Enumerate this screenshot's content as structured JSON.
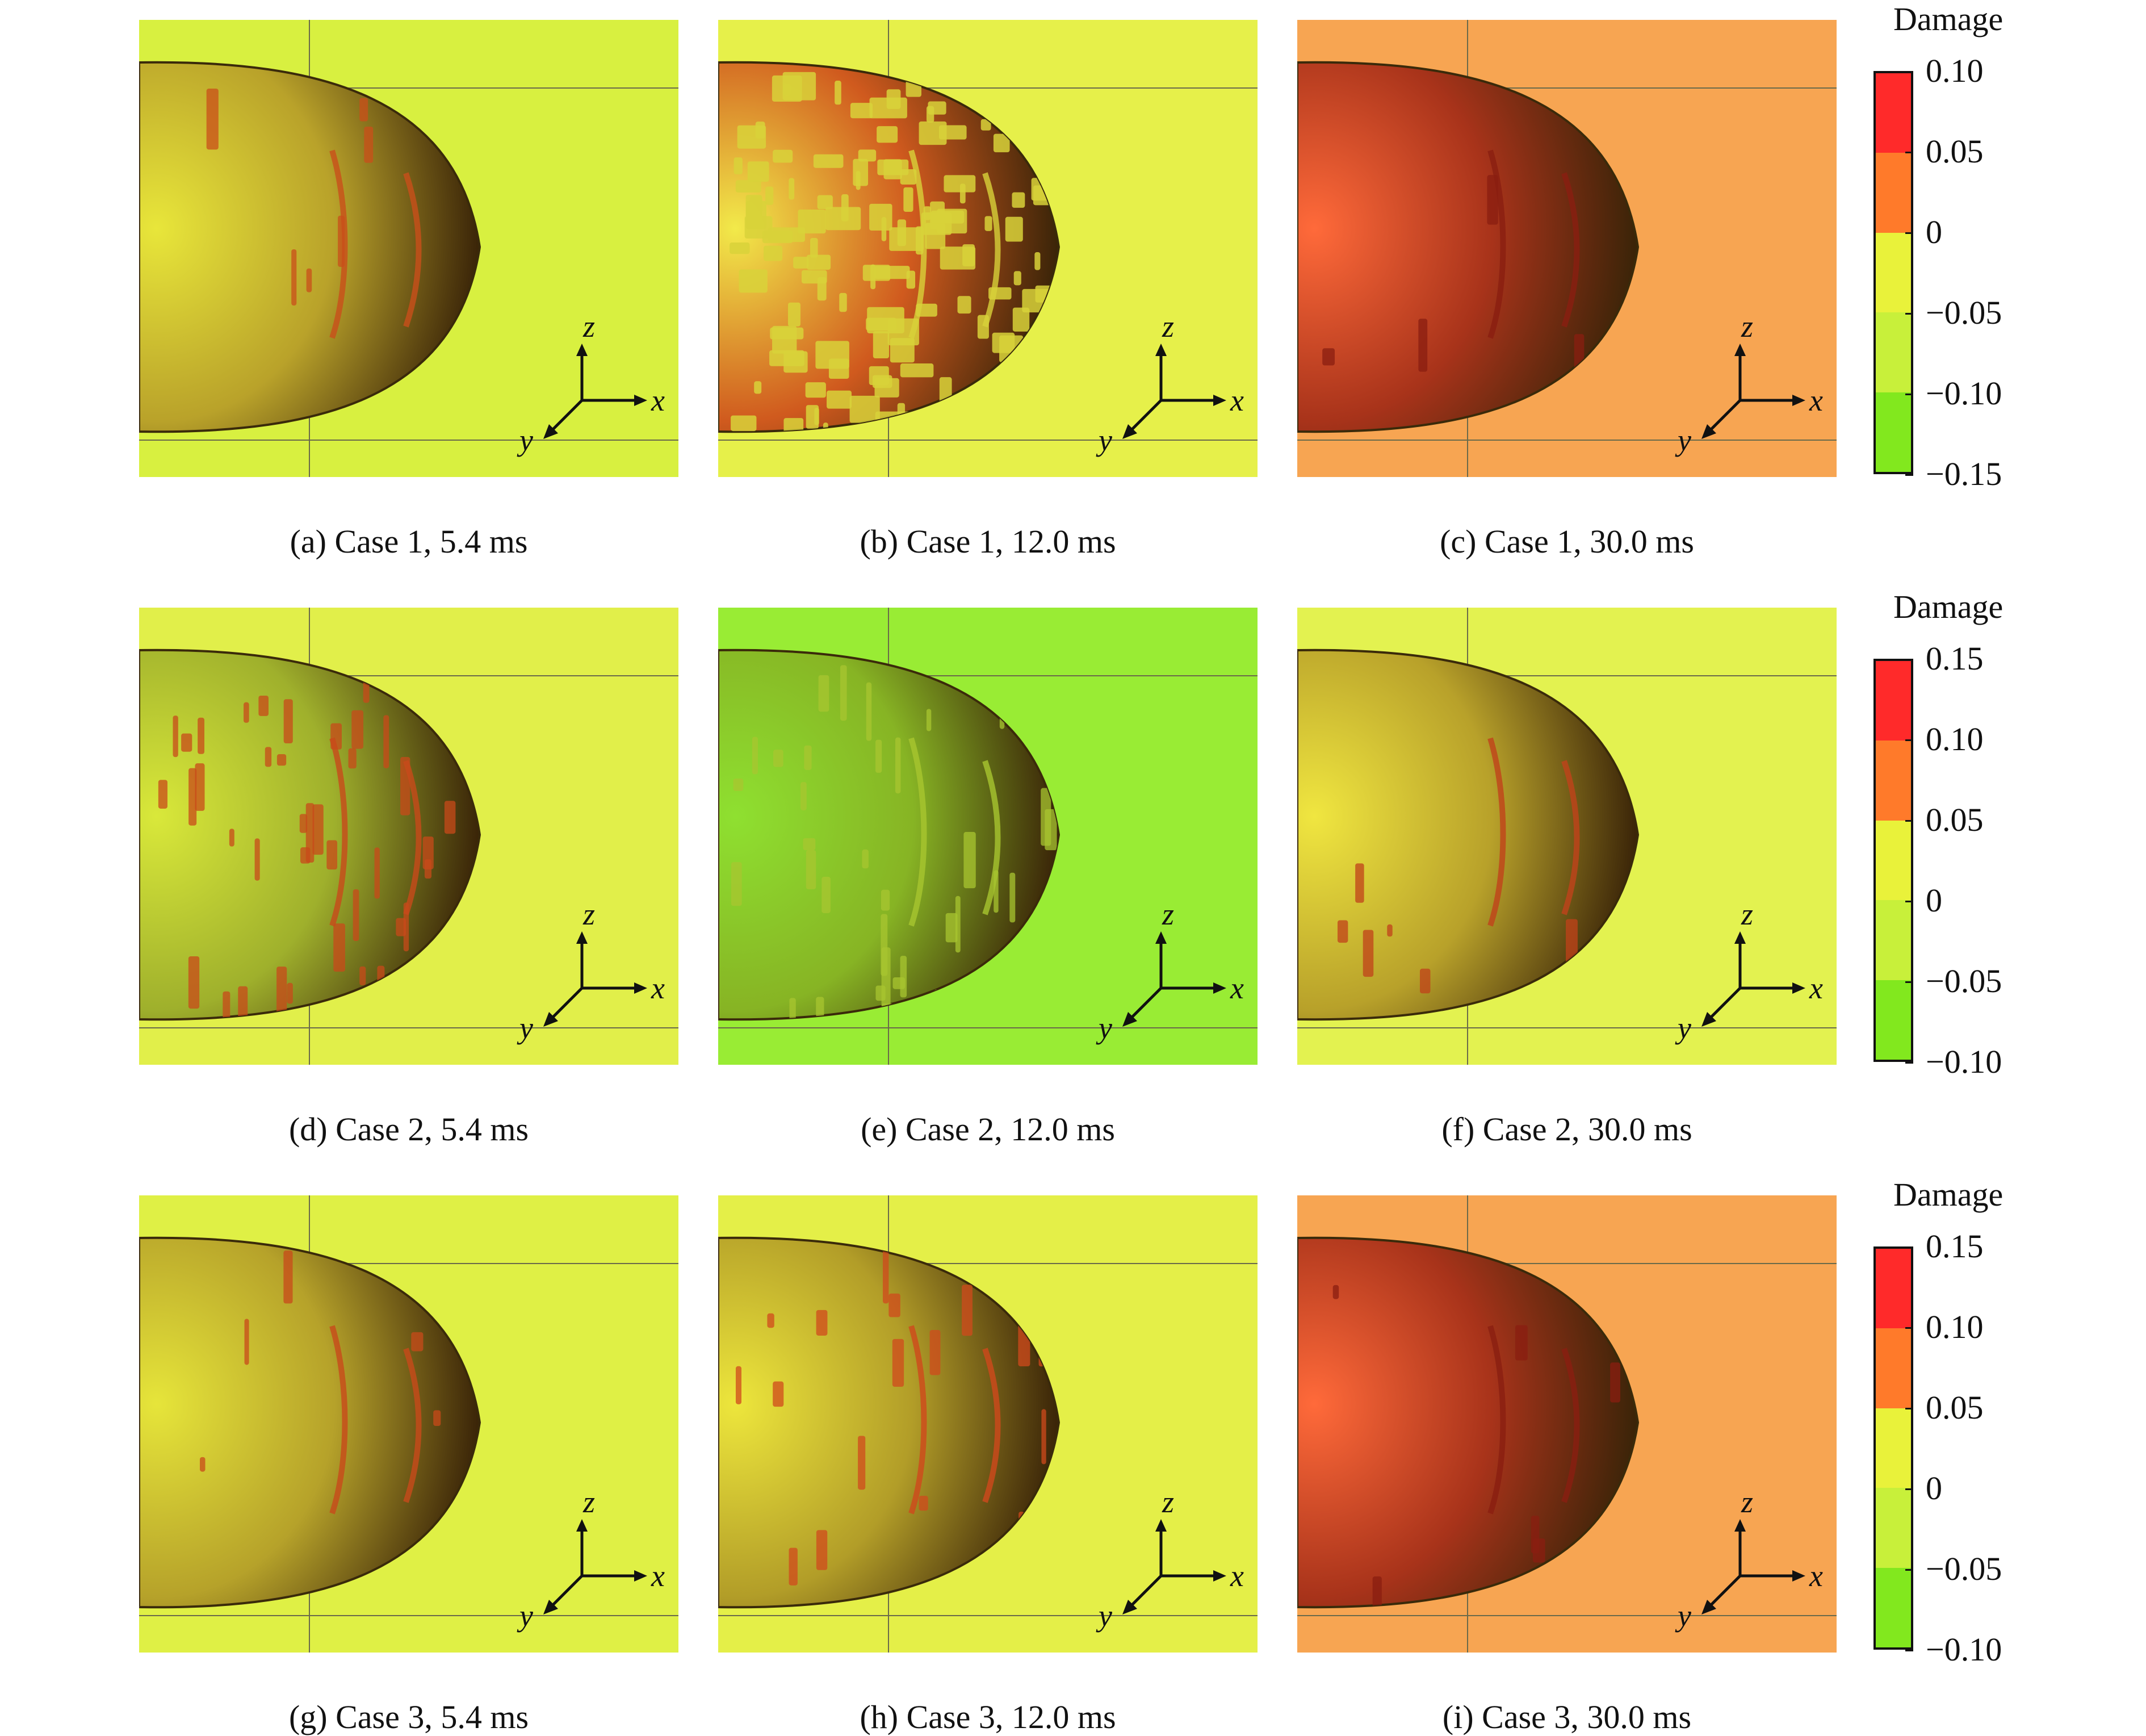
{
  "figure": {
    "panels": [
      {
        "caption": "(a) Case 1, 5.4 ms",
        "bg": "#d8f040",
        "body": "#b9a22a",
        "streaks": "#c94f1a",
        "highlight": "#e8e63a",
        "mottle": "none"
      },
      {
        "caption": "(b) Case 1, 12.0 ms",
        "bg": "#e6f04a",
        "body": "#d05a1e",
        "streaks": "#d8d23a",
        "highlight": "#f2ea4a",
        "mottle": "dense"
      },
      {
        "caption": "(c) Case 1, 30.0 ms",
        "bg": "#f7a552",
        "body": "#a8331a",
        "streaks": "#8a1e10",
        "highlight": "#ff6a3a",
        "mottle": "none"
      },
      {
        "caption": "(d) Case 2, 5.4 ms",
        "bg": "#e1ef4a",
        "body": "#9fb02c",
        "streaks": "#c84a1a",
        "highlight": "#d9e83a",
        "mottle": "medium"
      },
      {
        "caption": "(e) Case 2, 12.0 ms",
        "bg": "#99ec34",
        "body": "#87b424",
        "streaks": "#a8c530",
        "highlight": "#8fe030",
        "mottle": "light"
      },
      {
        "caption": "(f) Case 2, 30.0 ms",
        "bg": "#e3f250",
        "body": "#b8a12a",
        "streaks": "#c0421a",
        "highlight": "#f0e640",
        "mottle": "none"
      },
      {
        "caption": "(g) Case 3, 5.4 ms",
        "bg": "#dff045",
        "body": "#b6a22a",
        "streaks": "#c84a1a",
        "highlight": "#e6e53a",
        "mottle": "none"
      },
      {
        "caption": "(h) Case 3, 12.0 ms",
        "bg": "#e4ef48",
        "body": "#b29d28",
        "streaks": "#d0491c",
        "highlight": "#ede63c",
        "mottle": "sparse"
      },
      {
        "caption": "(i) Case 3, 30.0 ms",
        "bg": "#f7a552",
        "body": "#a8331a",
        "streaks": "#8a1e10",
        "highlight": "#ff6a3a",
        "mottle": "none"
      }
    ],
    "axes": {
      "x": "x",
      "y": "y",
      "z": "z"
    },
    "legends": [
      {
        "title": "Damage",
        "ticks": [
          "0.10",
          "0.05",
          "0",
          "−0.05",
          "−0.10",
          "−0.15"
        ],
        "colors": [
          "#ff2a2a",
          "#ff7a2a",
          "#e9f23a",
          "#c8f03a",
          "#82e81e"
        ]
      },
      {
        "title": "Damage",
        "ticks": [
          "0.15",
          "0.10",
          "0.05",
          "0",
          "−0.05",
          "−0.10"
        ],
        "colors": [
          "#ff2a2a",
          "#ff7a2a",
          "#e9f23a",
          "#c8f03a",
          "#82e81e"
        ]
      },
      {
        "title": "Damage",
        "ticks": [
          "0.15",
          "0.10",
          "0.05",
          "0",
          "−0.05",
          "−0.10"
        ],
        "colors": [
          "#ff2a2a",
          "#ff7a2a",
          "#e9f23a",
          "#c8f03a",
          "#82e81e"
        ]
      }
    ]
  }
}
